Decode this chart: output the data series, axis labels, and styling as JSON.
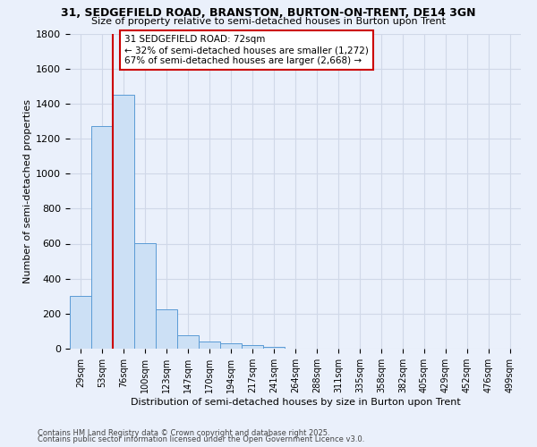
{
  "title1": "31, SEDGEFIELD ROAD, BRANSTON, BURTON-ON-TRENT, DE14 3GN",
  "title2": "Size of property relative to semi-detached houses in Burton upon Trent",
  "xlabel": "Distribution of semi-detached houses by size in Burton upon Trent",
  "ylabel": "Number of semi-detached properties",
  "categories": [
    "29sqm",
    "53sqm",
    "76sqm",
    "100sqm",
    "123sqm",
    "147sqm",
    "170sqm",
    "194sqm",
    "217sqm",
    "241sqm",
    "264sqm",
    "288sqm",
    "311sqm",
    "335sqm",
    "358sqm",
    "382sqm",
    "405sqm",
    "429sqm",
    "452sqm",
    "476sqm",
    "499sqm"
  ],
  "values": [
    300,
    1272,
    1450,
    605,
    225,
    75,
    40,
    33,
    22,
    12,
    0,
    0,
    0,
    0,
    0,
    0,
    0,
    0,
    0,
    0,
    0
  ],
  "bar_color": "#cce0f5",
  "bar_edge_color": "#5b9bd5",
  "red_line_x": 1.5,
  "annotation_text": "31 SEDGEFIELD ROAD: 72sqm\n← 32% of semi-detached houses are smaller (1,272)\n67% of semi-detached houses are larger (2,668) →",
  "annotation_box_color": "#ffffff",
  "annotation_border_color": "#cc0000",
  "ylim": [
    0,
    1800
  ],
  "yticks": [
    0,
    200,
    400,
    600,
    800,
    1000,
    1200,
    1400,
    1600,
    1800
  ],
  "grid_color": "#d0d8e8",
  "background_color": "#eaf0fb",
  "footer1": "Contains HM Land Registry data © Crown copyright and database right 2025.",
  "footer2": "Contains public sector information licensed under the Open Government Licence v3.0."
}
